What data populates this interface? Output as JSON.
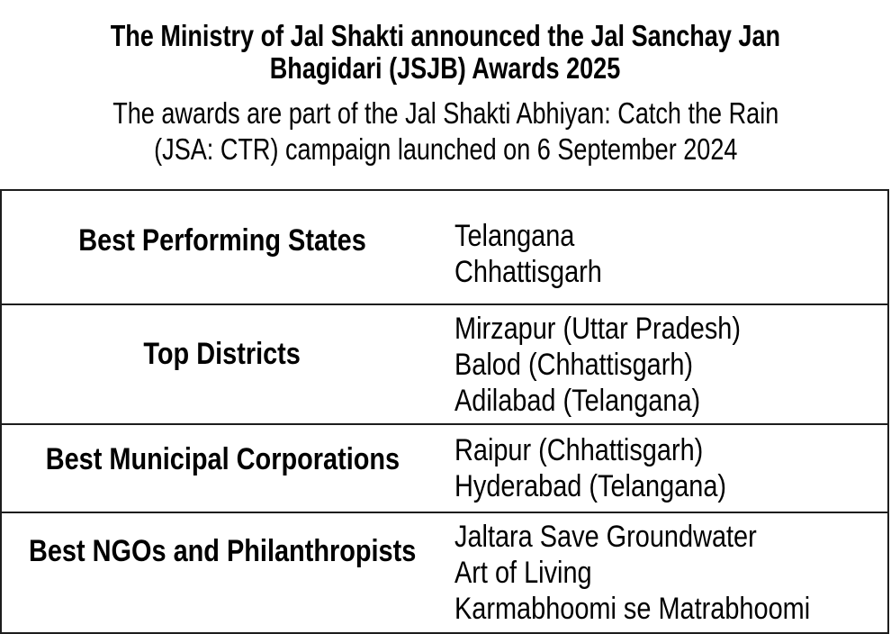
{
  "header": {
    "title_line1": "The Ministry of Jal Shakti announced the Jal Sanchay Jan",
    "title_line2": "Bhagidari (JSJB) Awards 2025",
    "subtitle_line1": "The awards are part of the Jal Shakti Abhiyan: Catch the Rain",
    "subtitle_line2": "(JSA: CTR) campaign launched on 6 September 2024"
  },
  "awards": {
    "rows": [
      {
        "category": "Best Performing States",
        "winners": [
          "Telangana",
          "Chhattisgarh"
        ]
      },
      {
        "category": "Top Districts",
        "winners": [
          "Mirzapur (Uttar Pradesh)",
          "Balod (Chhattisgarh)",
          "Adilabad (Telangana)"
        ]
      },
      {
        "category": "Best Municipal Corporations",
        "winners": [
          "Raipur (Chhattisgarh)",
          "Hyderabad (Telangana)"
        ]
      },
      {
        "category": "Best NGOs and Philanthropists",
        "winners": [
          "Jaltara Save Groundwater",
          "Art of Living",
          "Karmabhoomi se Matrabhoomi"
        ]
      }
    ]
  },
  "colors": {
    "text": "#000000",
    "border": "#1d1d1d",
    "background": "#ffffff"
  }
}
